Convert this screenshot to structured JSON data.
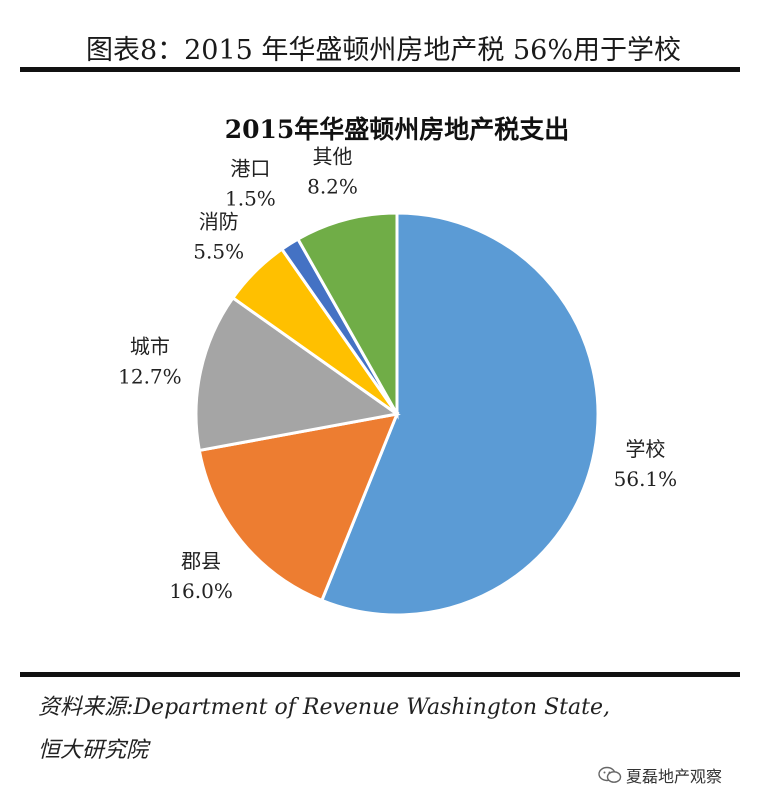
{
  "figure": {
    "title": "图表8：2015 年华盛顿州房地产税 56%用于学校",
    "source_line1": "资料来源:Department of Revenue Washington State,",
    "source_line2": "恒大研究院",
    "watermark": "夏磊地产观察"
  },
  "chart_data": {
    "type": "pie",
    "title": "2015年华盛顿州房地产税支出",
    "slices": [
      {
        "label": "学校",
        "value": 56.1,
        "value_label": "56.1%",
        "color": "#5B9BD5"
      },
      {
        "label": "郡县",
        "value": 16.0,
        "value_label": "16.0%",
        "color": "#ED7D31"
      },
      {
        "label": "城市",
        "value": 12.7,
        "value_label": "12.7%",
        "color": "#A5A5A5"
      },
      {
        "label": "消防",
        "value": 5.5,
        "value_label": "5.5%",
        "color": "#FFC000"
      },
      {
        "label": "港口",
        "value": 1.5,
        "value_label": "1.5%",
        "color": "#4472C4"
      },
      {
        "label": "其他",
        "value": 8.2,
        "value_label": "8.2%",
        "color": "#70AD47"
      }
    ],
    "start_angle_deg": 0,
    "direction": "clockwise",
    "legend": "none",
    "data_labels": "outside"
  }
}
